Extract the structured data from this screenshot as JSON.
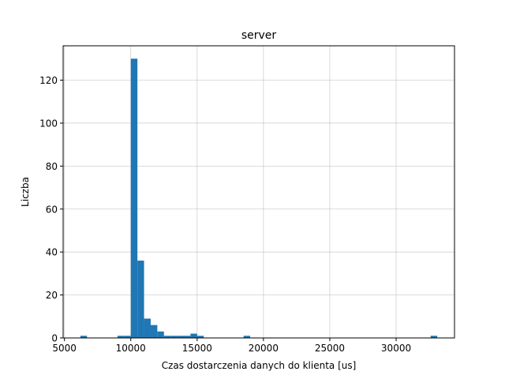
{
  "chart_data": {
    "type": "bar",
    "title": "server",
    "xlabel": "Czas dostarczenia danych do klienta [us]",
    "ylabel": "Liczba",
    "xlim": [
      4900,
      34400
    ],
    "ylim": [
      0,
      136
    ],
    "xticks": [
      5000,
      10000,
      15000,
      20000,
      25000,
      30000
    ],
    "yticks": [
      0,
      20,
      40,
      60,
      80,
      100,
      120
    ],
    "grid": true,
    "bar_color": "#1f77b4",
    "bins": [
      {
        "x0": 6200,
        "x1": 6700,
        "count": 1
      },
      {
        "x0": 9000,
        "x1": 9500,
        "count": 1
      },
      {
        "x0": 9500,
        "x1": 10000,
        "count": 1
      },
      {
        "x0": 10000,
        "x1": 10500,
        "count": 130
      },
      {
        "x0": 10500,
        "x1": 11000,
        "count": 36
      },
      {
        "x0": 11000,
        "x1": 11500,
        "count": 9
      },
      {
        "x0": 11500,
        "x1": 12000,
        "count": 6
      },
      {
        "x0": 12000,
        "x1": 12500,
        "count": 3
      },
      {
        "x0": 12500,
        "x1": 13000,
        "count": 1
      },
      {
        "x0": 13000,
        "x1": 13500,
        "count": 1
      },
      {
        "x0": 13500,
        "x1": 14000,
        "count": 1
      },
      {
        "x0": 14000,
        "x1": 14500,
        "count": 1
      },
      {
        "x0": 14500,
        "x1": 15000,
        "count": 2
      },
      {
        "x0": 15000,
        "x1": 15500,
        "count": 1
      },
      {
        "x0": 18500,
        "x1": 19000,
        "count": 1
      },
      {
        "x0": 32600,
        "x1": 33100,
        "count": 1
      }
    ]
  }
}
